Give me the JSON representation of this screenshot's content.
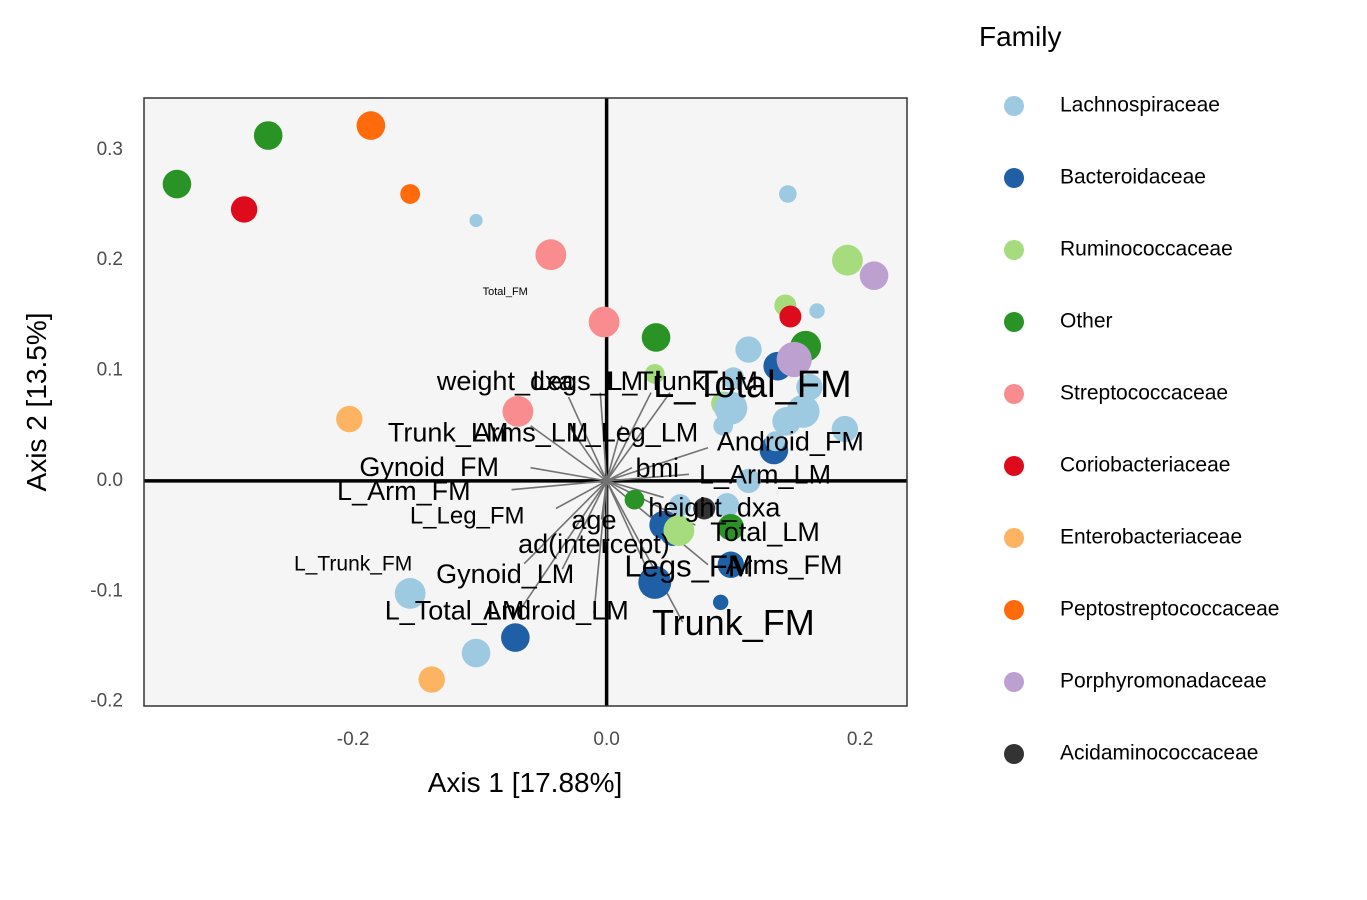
{
  "chart_data": {
    "type": "scatter",
    "xlabel": "Axis 1 [17.88%]",
    "ylabel": "Axis 2 [13.5%]",
    "xlim": [
      -0.365,
      0.237
    ],
    "ylim": [
      -0.204,
      0.347
    ],
    "xticks": [
      -0.2,
      0.0,
      0.2
    ],
    "xtick_labels": [
      "-0.2",
      "0.0",
      "0.2"
    ],
    "yticks": [
      -0.2,
      -0.1,
      0.0,
      0.1,
      0.2,
      0.3
    ],
    "ytick_labels": [
      "-0.2",
      "-0.1",
      "0.0",
      "0.1",
      "0.2",
      "0.3"
    ],
    "grid": false,
    "background": "#f5f5f5",
    "zero_lines": true,
    "legend": {
      "title": "Family",
      "placement": "right",
      "entries": [
        {
          "name": "Lachnospiraceae",
          "color": "#9ecae1"
        },
        {
          "name": "Bacteroidaceae",
          "color": "#1f5fa5"
        },
        {
          "name": "Ruminococcaceae",
          "color": "#a6dc7d"
        },
        {
          "name": "Other",
          "color": "#2a9325"
        },
        {
          "name": "Streptococcaceae",
          "color": "#f88c8e"
        },
        {
          "name": "Coriobacteriaceae",
          "color": "#de0b1c"
        },
        {
          "name": "Enterobacteriaceae",
          "color": "#fdb462"
        },
        {
          "name": "Peptostreptococcaceae",
          "color": "#ff6a0a"
        },
        {
          "name": "Porphyromonadaceae",
          "color": "#bca1d0"
        },
        {
          "name": "Acidaminococcaceae",
          "color": "#333333"
        }
      ]
    },
    "points": [
      {
        "x": -0.339,
        "y": 0.269,
        "family": "Other",
        "s": 1.3
      },
      {
        "x": -0.267,
        "y": 0.313,
        "family": "Other",
        "s": 1.3
      },
      {
        "x": -0.286,
        "y": 0.246,
        "family": "Coriobacteriaceae",
        "s": 1.2
      },
      {
        "x": -0.186,
        "y": 0.322,
        "family": "Peptostreptococcaceae",
        "s": 1.3
      },
      {
        "x": -0.155,
        "y": 0.26,
        "family": "Peptostreptococcaceae",
        "s": 0.9
      },
      {
        "x": -0.103,
        "y": 0.236,
        "family": "Lachnospiraceae",
        "s": 0.6
      },
      {
        "x": -0.044,
        "y": 0.205,
        "family": "Streptococcaceae",
        "s": 1.4
      },
      {
        "x": -0.002,
        "y": 0.144,
        "family": "Streptococcaceae",
        "s": 1.4
      },
      {
        "x": 0.039,
        "y": 0.13,
        "family": "Other",
        "s": 1.3
      },
      {
        "x": 0.038,
        "y": 0.097,
        "family": "Ruminococcaceae",
        "s": 0.9
      },
      {
        "x": -0.07,
        "y": 0.063,
        "family": "Streptococcaceae",
        "s": 1.4
      },
      {
        "x": -0.203,
        "y": 0.056,
        "family": "Enterobacteriaceae",
        "s": 1.2
      },
      {
        "x": 0.143,
        "y": 0.26,
        "family": "Lachnospiraceae",
        "s": 0.8
      },
      {
        "x": 0.19,
        "y": 0.2,
        "family": "Ruminococcaceae",
        "s": 1.4
      },
      {
        "x": 0.211,
        "y": 0.186,
        "family": "Porphyromonadaceae",
        "s": 1.3
      },
      {
        "x": 0.141,
        "y": 0.159,
        "family": "Ruminococcaceae",
        "s": 1.0
      },
      {
        "x": 0.166,
        "y": 0.154,
        "family": "Lachnospiraceae",
        "s": 0.7
      },
      {
        "x": 0.145,
        "y": 0.149,
        "family": "Coriobacteriaceae",
        "s": 1.0
      },
      {
        "x": 0.157,
        "y": 0.122,
        "family": "Other",
        "s": 1.4
      },
      {
        "x": 0.112,
        "y": 0.119,
        "family": "Lachnospiraceae",
        "s": 1.2
      },
      {
        "x": 0.135,
        "y": 0.104,
        "family": "Bacteroidaceae",
        "s": 1.3
      },
      {
        "x": 0.148,
        "y": 0.11,
        "family": "Porphyromonadaceae",
        "s": 1.6
      },
      {
        "x": 0.16,
        "y": 0.085,
        "family": "Lachnospiraceae",
        "s": 1.2
      },
      {
        "x": 0.1,
        "y": 0.093,
        "family": "Lachnospiraceae",
        "s": 1.0
      },
      {
        "x": 0.092,
        "y": 0.07,
        "family": "Ruminococcaceae",
        "s": 1.1
      },
      {
        "x": 0.098,
        "y": 0.066,
        "family": "Lachnospiraceae",
        "s": 1.5
      },
      {
        "x": 0.155,
        "y": 0.063,
        "family": "Lachnospiraceae",
        "s": 1.5
      },
      {
        "x": 0.142,
        "y": 0.054,
        "family": "Lachnospiraceae",
        "s": 1.3
      },
      {
        "x": 0.188,
        "y": 0.047,
        "family": "Lachnospiraceae",
        "s": 1.2
      },
      {
        "x": 0.092,
        "y": 0.05,
        "family": "Lachnospiraceae",
        "s": 0.9
      },
      {
        "x": 0.132,
        "y": 0.028,
        "family": "Bacteroidaceae",
        "s": 1.3
      },
      {
        "x": 0.133,
        "y": 0.036,
        "family": "Lachnospiraceae",
        "s": 0.9
      },
      {
        "x": 0.112,
        "y": 0.0,
        "family": "Lachnospiraceae",
        "s": 1.1
      },
      {
        "x": 0.095,
        "y": -0.022,
        "family": "Lachnospiraceae",
        "s": 1.1
      },
      {
        "x": 0.022,
        "y": -0.017,
        "family": "Other",
        "s": 0.9
      },
      {
        "x": 0.058,
        "y": -0.022,
        "family": "Lachnospiraceae",
        "s": 1.0
      },
      {
        "x": 0.077,
        "y": -0.025,
        "family": "Acidaminococcaceae",
        "s": 1.0
      },
      {
        "x": 0.045,
        "y": -0.04,
        "family": "Bacteroidaceae",
        "s": 1.3
      },
      {
        "x": 0.052,
        "y": -0.048,
        "family": "Bacteroidaceae",
        "s": 1.1
      },
      {
        "x": 0.057,
        "y": -0.045,
        "family": "Ruminococcaceae",
        "s": 1.4
      },
      {
        "x": 0.098,
        "y": -0.042,
        "family": "Other",
        "s": 1.2
      },
      {
        "x": 0.098,
        "y": -0.076,
        "family": "Bacteroidaceae",
        "s": 1.2
      },
      {
        "x": 0.038,
        "y": -0.092,
        "family": "Bacteroidaceae",
        "s": 1.5
      },
      {
        "x": 0.09,
        "y": -0.11,
        "family": "Bacteroidaceae",
        "s": 0.7
      },
      {
        "x": -0.155,
        "y": -0.102,
        "family": "Lachnospiraceae",
        "s": 1.4
      },
      {
        "x": -0.072,
        "y": -0.142,
        "family": "Bacteroidaceae",
        "s": 1.3
      },
      {
        "x": -0.103,
        "y": -0.156,
        "family": "Lachnospiraceae",
        "s": 1.3
      },
      {
        "x": -0.138,
        "y": -0.18,
        "family": "Enterobacteriaceae",
        "s": 1.2
      }
    ],
    "vectors": [
      {
        "label": "L_Total_FM",
        "x": 0.05,
        "y": 0.08,
        "lx": 0.115,
        "ly": 0.085,
        "size": 38
      },
      {
        "label": "weight_dxa",
        "x": -0.03,
        "y": 0.076,
        "lx": -0.08,
        "ly": 0.089,
        "size": 27
      },
      {
        "label": "Legs_LM",
        "x": -0.005,
        "y": 0.08,
        "lx": -0.015,
        "ly": 0.089,
        "size": 27
      },
      {
        "label": "L_Trunk_LM",
        "x": 0.035,
        "y": 0.08,
        "lx": 0.06,
        "ly": 0.089,
        "size": 27
      },
      {
        "label": "Trunk_LM",
        "x": -0.06,
        "y": 0.05,
        "lx": -0.125,
        "ly": 0.042,
        "size": 27
      },
      {
        "label": "Arms_LM",
        "x": -0.03,
        "y": 0.05,
        "lx": -0.06,
        "ly": 0.042,
        "size": 27
      },
      {
        "label": "L_Leg_LM",
        "x": 0.012,
        "y": 0.05,
        "lx": 0.022,
        "ly": 0.042,
        "size": 27
      },
      {
        "label": "Android_FM",
        "x": 0.08,
        "y": 0.03,
        "lx": 0.145,
        "ly": 0.034,
        "size": 27
      },
      {
        "label": "Gynoid_FM",
        "x": -0.06,
        "y": 0.012,
        "lx": -0.14,
        "ly": 0.011,
        "size": 27
      },
      {
        "label": "bmi",
        "x": 0.02,
        "y": 0.012,
        "lx": 0.04,
        "ly": 0.01,
        "size": 27
      },
      {
        "label": "L_Arm_LM",
        "x": 0.065,
        "y": 0.006,
        "lx": 0.125,
        "ly": 0.004,
        "size": 27
      },
      {
        "label": "L_Arm_FM",
        "x": -0.075,
        "y": -0.008,
        "lx": -0.16,
        "ly": -0.011,
        "size": 27
      },
      {
        "label": "height_dxa",
        "x": 0.045,
        "y": -0.015,
        "lx": 0.085,
        "ly": -0.026,
        "size": 27
      },
      {
        "label": "L_Leg_FM",
        "x": -0.04,
        "y": -0.025,
        "lx": -0.11,
        "ly": -0.033,
        "size": 24
      },
      {
        "label": "age",
        "x": -0.004,
        "y": -0.035,
        "lx": -0.01,
        "ly": -0.037,
        "size": 27
      },
      {
        "label": "Total_LM",
        "x": 0.07,
        "y": -0.04,
        "lx": 0.125,
        "ly": -0.048,
        "size": 27
      },
      {
        "label": "ad(intercept)",
        "x": 0.0,
        "y": -0.055,
        "lx": -0.01,
        "ly": -0.059,
        "size": 27
      },
      {
        "label": "L_Trunk_FM",
        "x": -0.065,
        "y": -0.075,
        "lx": -0.2,
        "ly": -0.076,
        "size": 21
      },
      {
        "label": "Gynoid_LM",
        "x": -0.035,
        "y": -0.08,
        "lx": -0.08,
        "ly": -0.086,
        "size": 27
      },
      {
        "label": "Legs_FM",
        "x": 0.03,
        "y": -0.075,
        "lx": 0.065,
        "ly": -0.079,
        "size": 31
      },
      {
        "label": "Arms_FM",
        "x": 0.08,
        "y": -0.076,
        "lx": 0.14,
        "ly": -0.078,
        "size": 27
      },
      {
        "label": "L_Total_LM",
        "x": -0.07,
        "y": -0.12,
        "lx": -0.12,
        "ly": -0.119,
        "size": 27
      },
      {
        "label": "Android_LM",
        "x": -0.01,
        "y": -0.12,
        "lx": -0.04,
        "ly": -0.119,
        "size": 27
      },
      {
        "label": "Trunk_FM",
        "x": 0.06,
        "y": -0.128,
        "lx": 0.1,
        "ly": -0.131,
        "size": 36
      },
      {
        "label": "Total_FM",
        "x": -0.08,
        "y": 0.171,
        "lx": -0.08,
        "ly": 0.171,
        "size": 11,
        "no_arrow": true
      }
    ]
  }
}
